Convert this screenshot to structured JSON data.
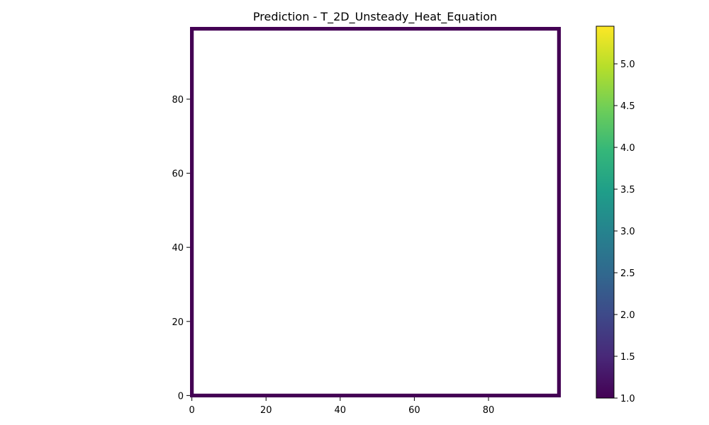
{
  "chart_data": {
    "type": "heatmap",
    "title": "Prediction - T_2D_Unsteady_Heat_Equation",
    "xlabel": "",
    "ylabel": "",
    "xlim": [
      -0.5,
      99.5
    ],
    "ylim": [
      -0.5,
      99.5
    ],
    "xticks": [
      0,
      20,
      40,
      60,
      80
    ],
    "yticks": [
      0,
      20,
      40,
      60,
      80
    ],
    "grid": false,
    "colormap": "viridis",
    "field_description_values": {
      "boundary_value": 1.0,
      "interior_value": null
    },
    "boundary_cells": [
      {
        "edge": "left",
        "index_range": [
          0,
          99
        ],
        "value": 1.0
      },
      {
        "edge": "right",
        "index_range": [
          0,
          99
        ],
        "value": 1.0
      },
      {
        "edge": "bottom",
        "index_range": [
          0,
          99
        ],
        "value": 1.0
      },
      {
        "edge": "top",
        "index_range": [
          0,
          99
        ],
        "value": 1.0
      }
    ],
    "colorbar": {
      "range": [
        1.0,
        5.45
      ],
      "ticks": [
        1.0,
        1.5,
        2.0,
        2.5,
        3.0,
        3.5,
        4.0,
        4.5,
        5.0
      ],
      "tick_labels": [
        "1.0",
        "1.5",
        "2.0",
        "2.5",
        "3.0",
        "3.5",
        "4.0",
        "4.5",
        "5.0"
      ]
    }
  },
  "colors": {
    "boundary": "#440154",
    "viridis_stops": [
      "#440154",
      "#482878",
      "#3e4989",
      "#31688e",
      "#26828e",
      "#1f9e89",
      "#35b779",
      "#6ece58",
      "#b5de2b",
      "#fde725"
    ]
  }
}
